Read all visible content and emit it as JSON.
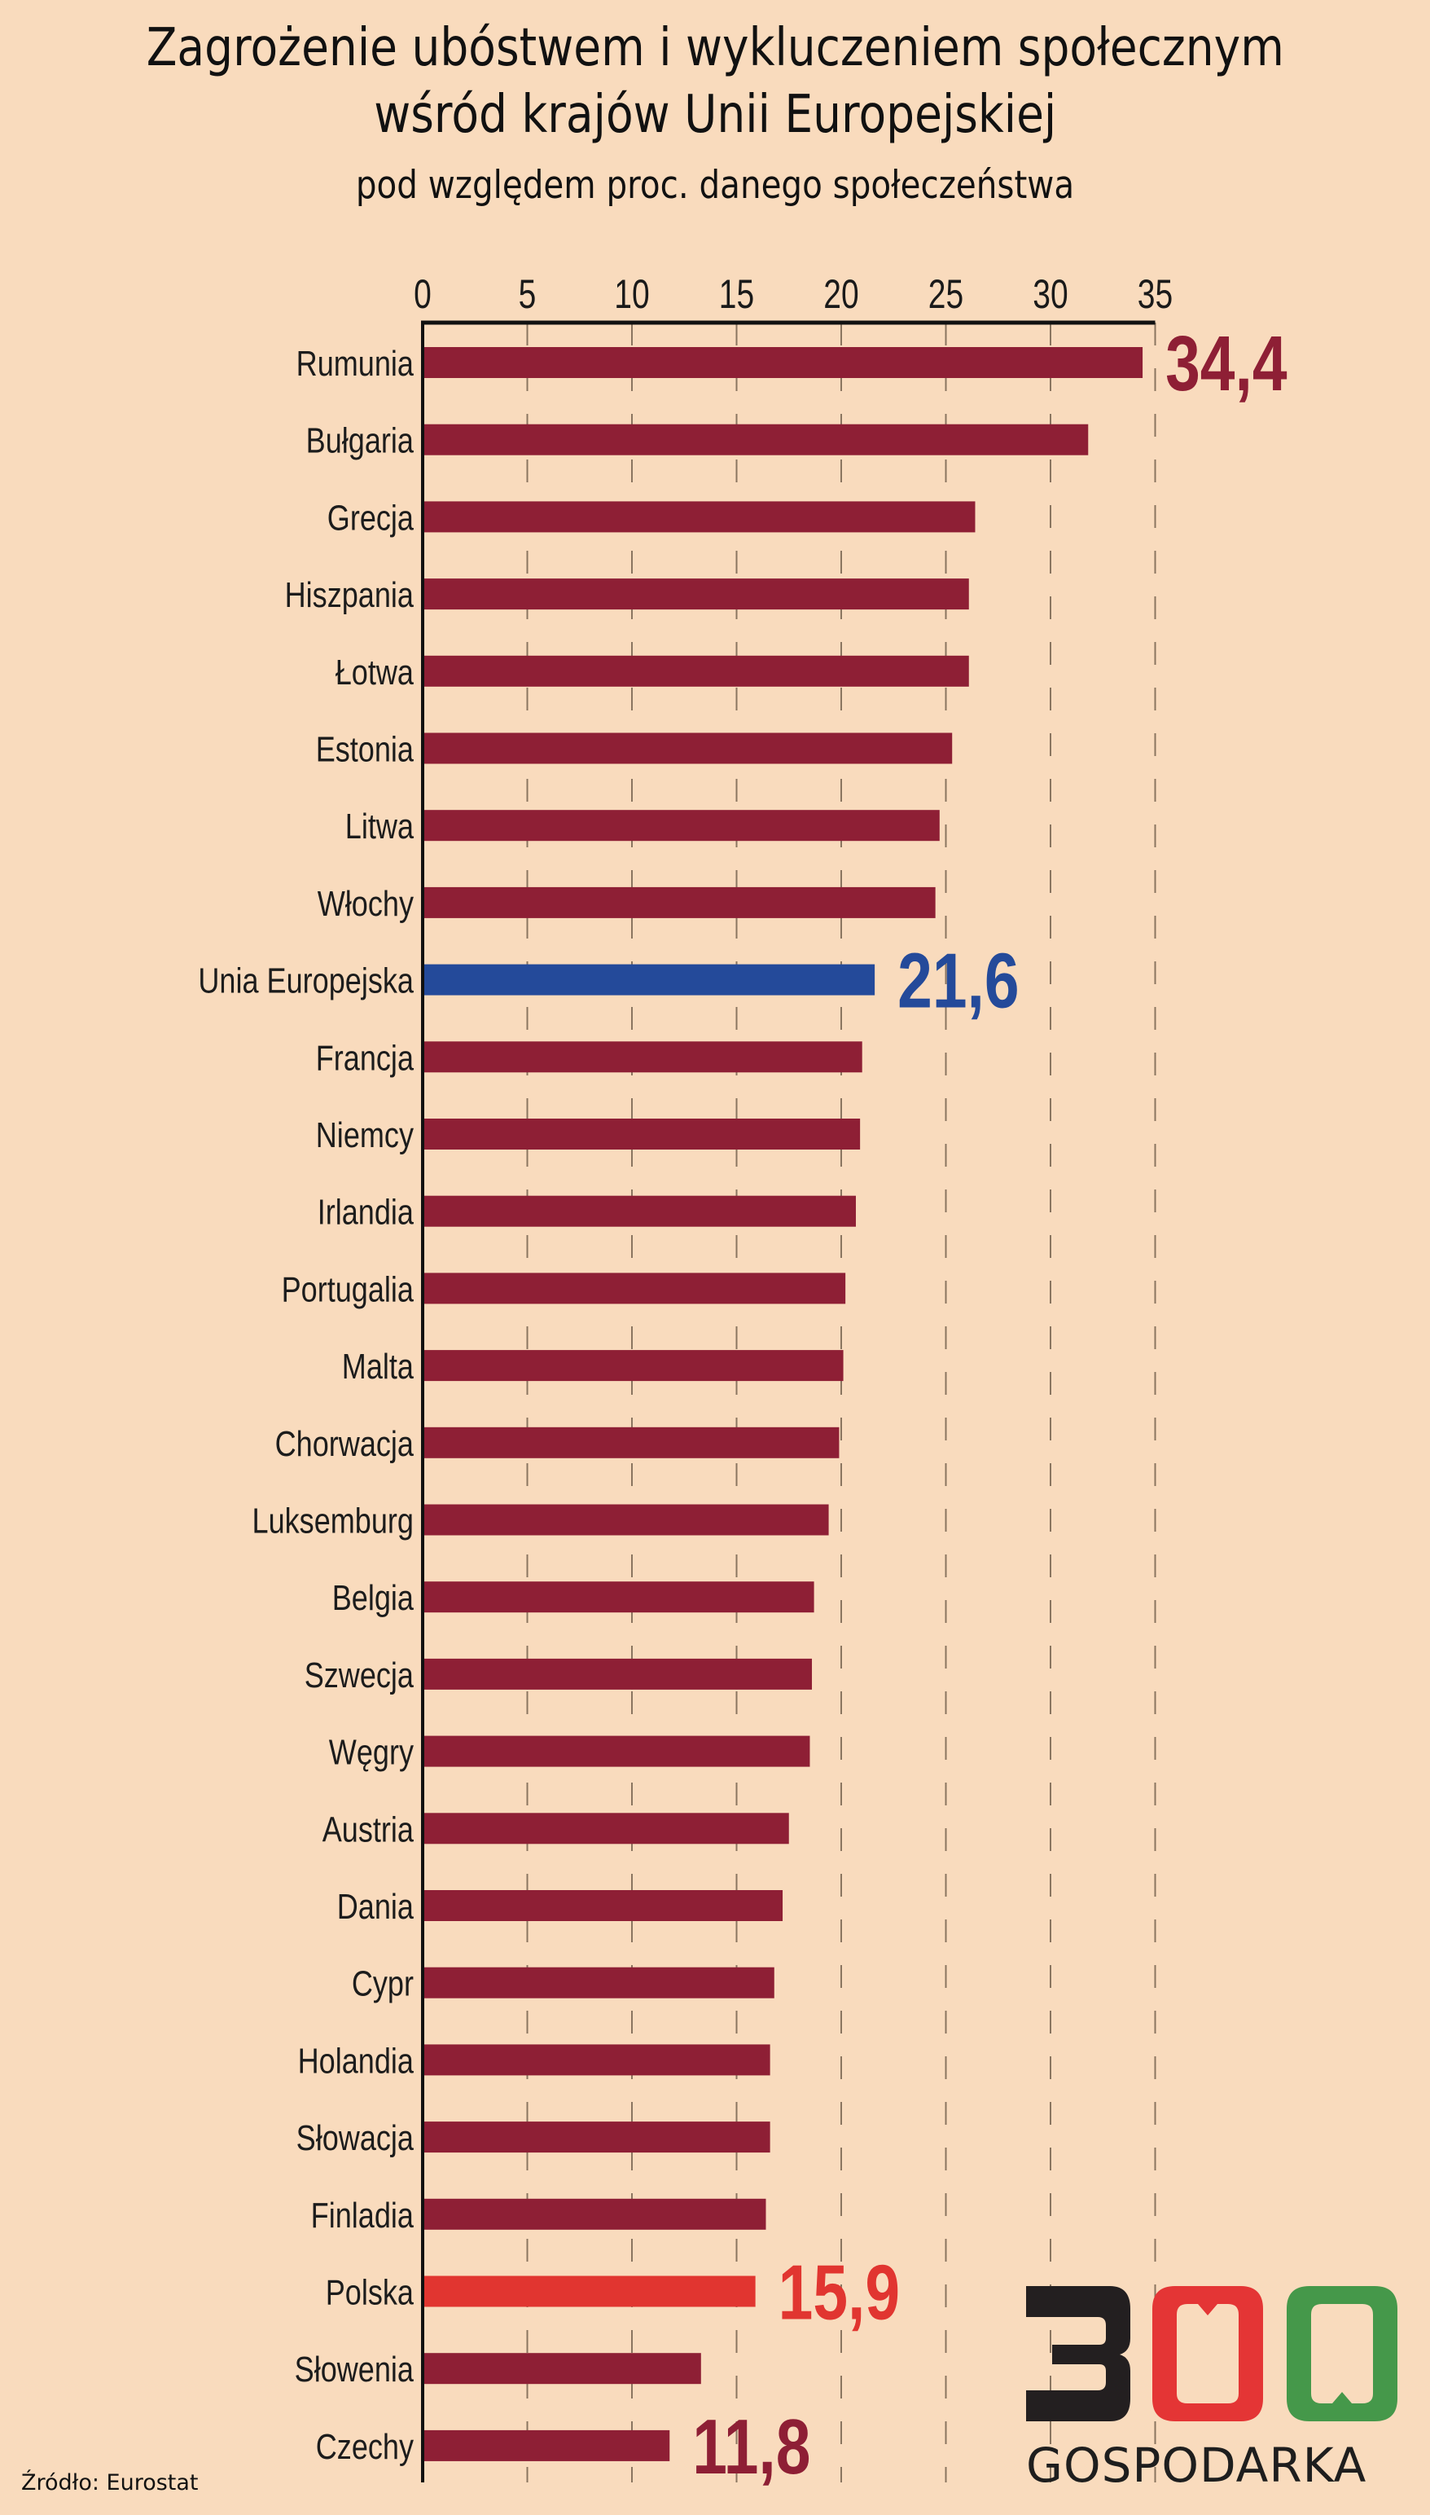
{
  "title": {
    "line1": "Zagrożenie ubóstwem i wykluczeniem społecznym",
    "line2": "wśród krajów Unii Europejskiej",
    "subtitle": "pod względem proc. danego społeczeństwa"
  },
  "source": "Źródło: Eurostat",
  "logo": {
    "number_glyphs": [
      "3",
      "0",
      "0"
    ],
    "wordmark": "GOSPODARKA",
    "colors": [
      "#231F20",
      "#E43535",
      "#45984A"
    ]
  },
  "colors": {
    "background": "#F9DBBD",
    "bar_default": "#8E1F35",
    "bar_eu": "#244A9A",
    "bar_poland": "#E13530",
    "gridline": "#8A7560",
    "axis": "#111111"
  },
  "chart_data": {
    "type": "bar",
    "orientation": "horizontal",
    "title": "Zagrożenie ubóstwem i wykluczeniem społecznym wśród krajów Unii Europejskiej",
    "subtitle": "pod względem proc. danego społeczeństwa",
    "xlabel": "",
    "ylabel": "",
    "xlim": [
      0,
      35
    ],
    "x_ticks": [
      0,
      5,
      10,
      15,
      20,
      25,
      30,
      35
    ],
    "x_axis_position": "top",
    "grid": "vertical dashed",
    "categories": [
      "Rumunia",
      "Bułgaria",
      "Grecja",
      "Hiszpania",
      "Łotwa",
      "Estonia",
      "Litwa",
      "Włochy",
      "Unia Europejska",
      "Francja",
      "Niemcy",
      "Irlandia",
      "Portugalia",
      "Malta",
      "Chorwacja",
      "Luksemburg",
      "Belgia",
      "Szwecja",
      "Węgry",
      "Austria",
      "Dania",
      "Cypr",
      "Holandia",
      "Słowacja",
      "Finladia",
      "Polska",
      "Słowenia",
      "Czechy"
    ],
    "values": [
      34.4,
      31.8,
      26.4,
      26.1,
      26.1,
      25.3,
      24.7,
      24.5,
      21.6,
      21.0,
      20.9,
      20.7,
      20.2,
      20.1,
      19.9,
      19.4,
      18.7,
      18.6,
      18.5,
      17.5,
      17.2,
      16.8,
      16.6,
      16.6,
      16.4,
      15.9,
      13.3,
      11.8
    ],
    "highlight": {
      "Unia Europejska": "eu",
      "Polska": "poland"
    },
    "data_labels": [
      {
        "category": "Rumunia",
        "text": "34,4",
        "color": "#8E1F35"
      },
      {
        "category": "Unia Europejska",
        "text": "21,6",
        "color": "#244A9A"
      },
      {
        "category": "Polska",
        "text": "15,9",
        "color": "#E13530"
      },
      {
        "category": "Czechy",
        "text": "11,8",
        "color": "#8E1F35"
      }
    ]
  }
}
